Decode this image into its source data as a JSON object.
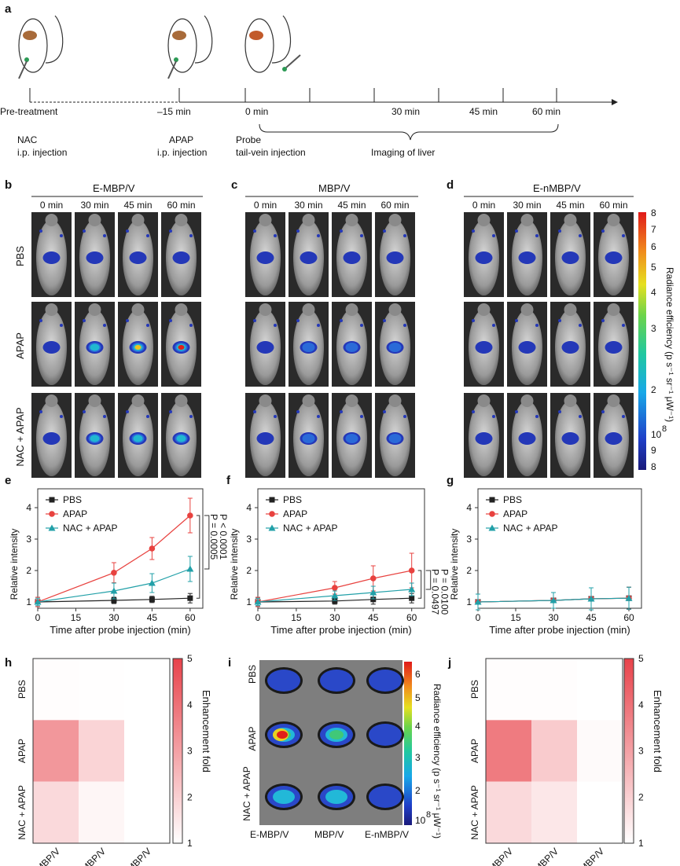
{
  "panel_labels": {
    "a": "a",
    "b": "b",
    "c": "c",
    "d": "d",
    "e": "e",
    "f": "f",
    "g": "g",
    "h": "h",
    "i": "i",
    "j": "j"
  },
  "timeline": {
    "ticks": [
      "Pre-treatment",
      "–15 min",
      "0 min",
      "30 min",
      "45 min",
      "60 min"
    ],
    "events": [
      {
        "line1": "NAC",
        "line2": "i.p. injection"
      },
      {
        "line1": "APAP",
        "line2": "i.p. injection"
      },
      {
        "line1": "Probe",
        "line2": "tail-vein injection"
      }
    ],
    "imaging_label": "Imaging of liver"
  },
  "imaging_panels": [
    {
      "title": "E-MBP/V"
    },
    {
      "title": "MBP/V"
    },
    {
      "title": "E-nMBP/V"
    }
  ],
  "time_labels": [
    "0 min",
    "30 min",
    "45 min",
    "60 min"
  ],
  "row_labels": [
    "PBS",
    "APAP",
    "NAC + APAP"
  ],
  "colorbar_main": {
    "ticks": [
      "8",
      "7",
      "6",
      "5",
      "4",
      "3",
      "2",
      "10",
      "9",
      "8"
    ],
    "exp": "8",
    "label": "Radiance efficiency (p s⁻¹ sr⁻¹ μW⁻¹)"
  },
  "colors": {
    "pbs": "#222222",
    "apap": "#e8423f",
    "nac": "#22a0a8"
  },
  "chart_data": [
    {
      "type": "line",
      "panel": "e",
      "xlabel": "Time after probe injection (min)",
      "ylabel": "Relative intensity",
      "x": [
        0,
        30,
        45,
        60
      ],
      "xticks": [
        "0",
        "15",
        "30",
        "45",
        "60"
      ],
      "yticks": [
        "1",
        "2",
        "3",
        "4"
      ],
      "ylim": [
        0.8,
        4.6
      ],
      "series": [
        {
          "name": "PBS",
          "values": [
            1.0,
            1.05,
            1.08,
            1.12
          ],
          "err": [
            0.15,
            0.1,
            0.1,
            0.15
          ]
        },
        {
          "name": "APAP",
          "values": [
            1.0,
            1.93,
            2.7,
            3.75
          ],
          "err": [
            0.15,
            0.32,
            0.35,
            0.55
          ]
        },
        {
          "name": "NAC + APAP",
          "values": [
            1.0,
            1.35,
            1.6,
            2.05
          ],
          "err": [
            0.12,
            0.25,
            0.3,
            0.4
          ]
        }
      ],
      "annotations": [
        "P < 0.0001",
        "P = 0.0005"
      ]
    },
    {
      "type": "line",
      "panel": "f",
      "xlabel": "Time after probe injection (min)",
      "ylabel": "Relative intensity",
      "x": [
        0,
        30,
        45,
        60
      ],
      "xticks": [
        "0",
        "15",
        "30",
        "45",
        "60"
      ],
      "yticks": [
        "1",
        "2",
        "3",
        "4"
      ],
      "ylim": [
        0.8,
        4.6
      ],
      "series": [
        {
          "name": "PBS",
          "values": [
            1.0,
            1.03,
            1.08,
            1.12
          ],
          "err": [
            0.12,
            0.1,
            0.15,
            0.15
          ]
        },
        {
          "name": "APAP",
          "values": [
            1.0,
            1.45,
            1.75,
            2.0
          ],
          "err": [
            0.15,
            0.2,
            0.4,
            0.55
          ]
        },
        {
          "name": "NAC + APAP",
          "values": [
            1.0,
            1.2,
            1.3,
            1.4
          ],
          "err": [
            0.12,
            0.15,
            0.2,
            0.2
          ]
        }
      ],
      "annotations": [
        "P = 0.0100",
        "P = 0.0497"
      ]
    },
    {
      "type": "line",
      "panel": "g",
      "xlabel": "Time after probe injection (min)",
      "ylabel": "Relative intensity",
      "x": [
        0,
        30,
        45,
        60
      ],
      "xticks": [
        "0",
        "15",
        "30",
        "45",
        "60"
      ],
      "yticks": [
        "1",
        "2",
        "3",
        "4"
      ],
      "ylim": [
        0.8,
        4.6
      ],
      "series": [
        {
          "name": "PBS",
          "values": [
            1.0,
            1.05,
            1.1,
            1.12
          ],
          "err": [
            0.25,
            0.25,
            0.35,
            0.35
          ]
        },
        {
          "name": "APAP",
          "values": [
            1.0,
            1.05,
            1.1,
            1.12
          ],
          "err": [
            0.25,
            0.25,
            0.35,
            0.35
          ]
        },
        {
          "name": "NAC + APAP",
          "values": [
            1.0,
            1.05,
            1.1,
            1.12
          ],
          "err": [
            0.25,
            0.25,
            0.35,
            0.35
          ]
        }
      ],
      "annotations": []
    },
    {
      "type": "heatmap",
      "panel": "h",
      "rows": [
        "PBS",
        "APAP",
        "NAC + APAP"
      ],
      "cols": [
        "E-MBP/V",
        "MBP/V",
        "E-nMBP/V"
      ],
      "values": [
        [
          1.05,
          1.02,
          1.0
        ],
        [
          3.2,
          1.9,
          1.0
        ],
        [
          1.8,
          1.2,
          1.0
        ]
      ],
      "zlim": [
        1,
        5
      ],
      "cbar_ticks": [
        "1",
        "2",
        "3",
        "4",
        "5"
      ],
      "cbar_label": "Enhancement fold"
    },
    {
      "type": "heatmap",
      "panel": "j",
      "rows": [
        "PBS",
        "APAP",
        "NAC + APAP"
      ],
      "cols": [
        "E-MBP/V",
        "MBP/V",
        "E-nMBP/V"
      ],
      "values": [
        [
          1.05,
          1.05,
          1.0
        ],
        [
          3.8,
          2.1,
          1.1
        ],
        [
          1.8,
          1.5,
          1.0
        ]
      ],
      "zlim": [
        1,
        5
      ],
      "cbar_ticks": [
        "1",
        "2",
        "3",
        "4",
        "5"
      ],
      "cbar_label": "Enhancement fold"
    }
  ],
  "panel_i": {
    "rows": [
      "PBS",
      "APAP",
      "NAC + APAP"
    ],
    "cols": [
      "E-MBP/V",
      "MBP/V",
      "E-nMBP/V"
    ],
    "cbar_ticks": [
      "6",
      "5",
      "4",
      "3",
      "2",
      "10"
    ],
    "cbar_exp": "8",
    "cbar_label": "Radiance efficiency (p s⁻¹ sr⁻¹ μW⁻¹)"
  }
}
